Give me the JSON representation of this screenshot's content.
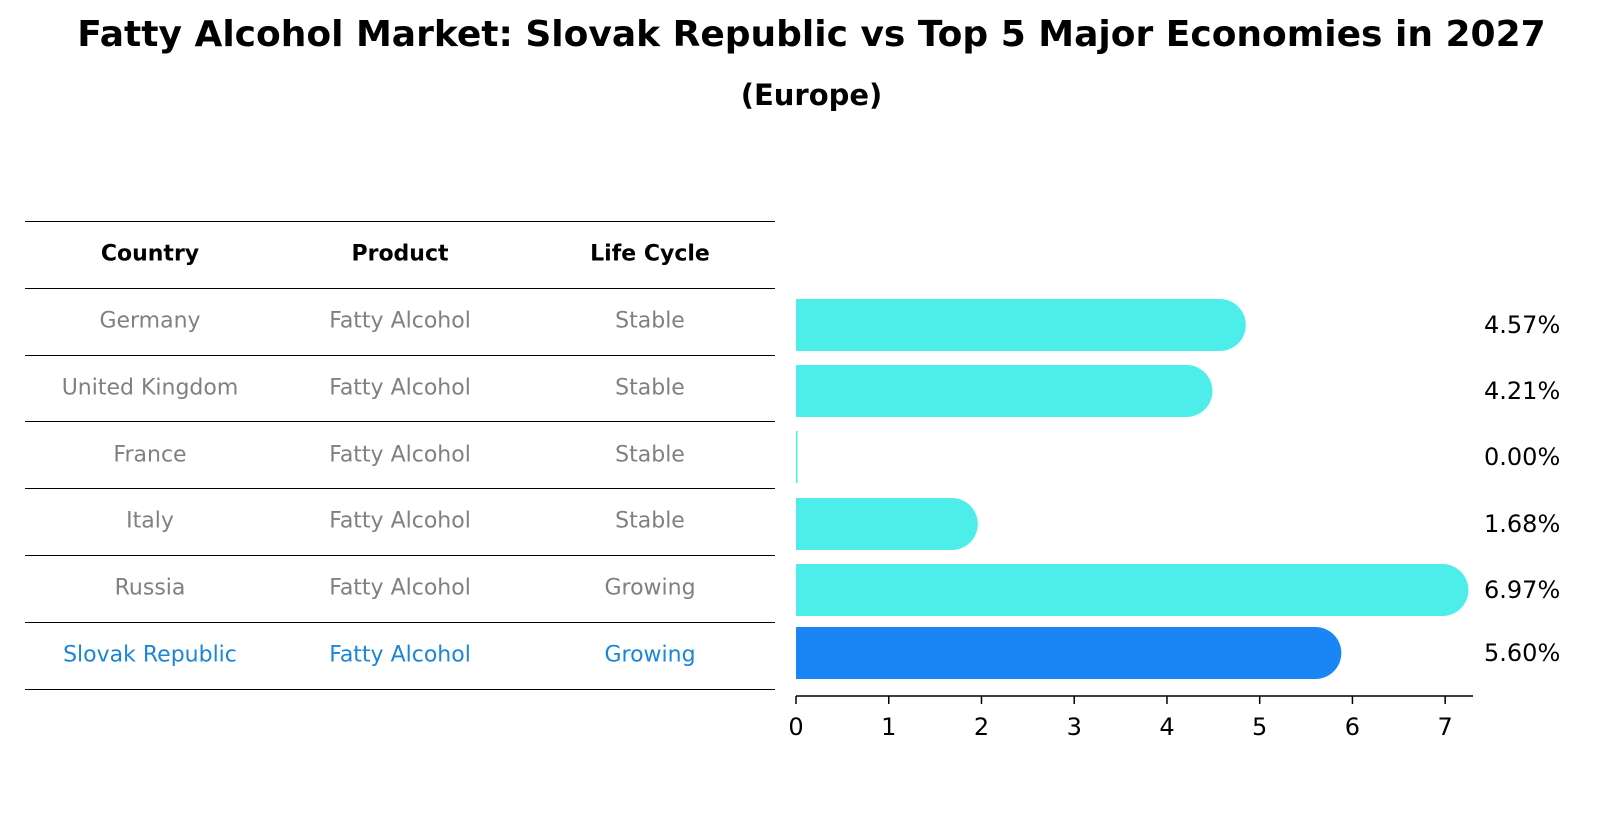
{
  "title": "Fatty Alcohol Market: Slovak Republic vs Top 5 Major Economies in 2027",
  "subtitle": "(Europe)",
  "table": {
    "headers": [
      "Country",
      "Product",
      "Life Cycle"
    ],
    "rows": [
      {
        "country": "Germany",
        "product": "Fatty Alcohol",
        "life_cycle": "Stable",
        "highlight": false
      },
      {
        "country": "United Kingdom",
        "product": "Fatty Alcohol",
        "life_cycle": "Stable",
        "highlight": false
      },
      {
        "country": "France",
        "product": "Fatty Alcohol",
        "life_cycle": "Stable",
        "highlight": false
      },
      {
        "country": "Italy",
        "product": "Fatty Alcohol",
        "life_cycle": "Stable",
        "highlight": false
      },
      {
        "country": "Russia",
        "product": "Fatty Alcohol",
        "life_cycle": "Growing",
        "highlight": false
      },
      {
        "country": "Slovak Republic",
        "product": "Fatty Alcohol",
        "life_cycle": "Growing",
        "highlight": true
      }
    ]
  },
  "chart_data": {
    "type": "bar",
    "orientation": "horizontal",
    "categories": [
      "Germany",
      "United Kingdom",
      "France",
      "Italy",
      "Russia",
      "Slovak Republic"
    ],
    "values": [
      4.57,
      4.21,
      0.0,
      1.68,
      6.97,
      5.6
    ],
    "value_labels": [
      "4.57%",
      "4.21%",
      "0.00%",
      "1.68%",
      "6.97%",
      "5.60%"
    ],
    "xlim": [
      0,
      7.3
    ],
    "xticks": [
      0,
      1,
      2,
      3,
      4,
      5,
      6,
      7
    ],
    "colors": {
      "default": "#4deeea",
      "highlight": "#1a86f5",
      "highlight_text": "#1a86d9",
      "muted_text": "#808080"
    },
    "highlight_index": 5,
    "grid": false
  }
}
